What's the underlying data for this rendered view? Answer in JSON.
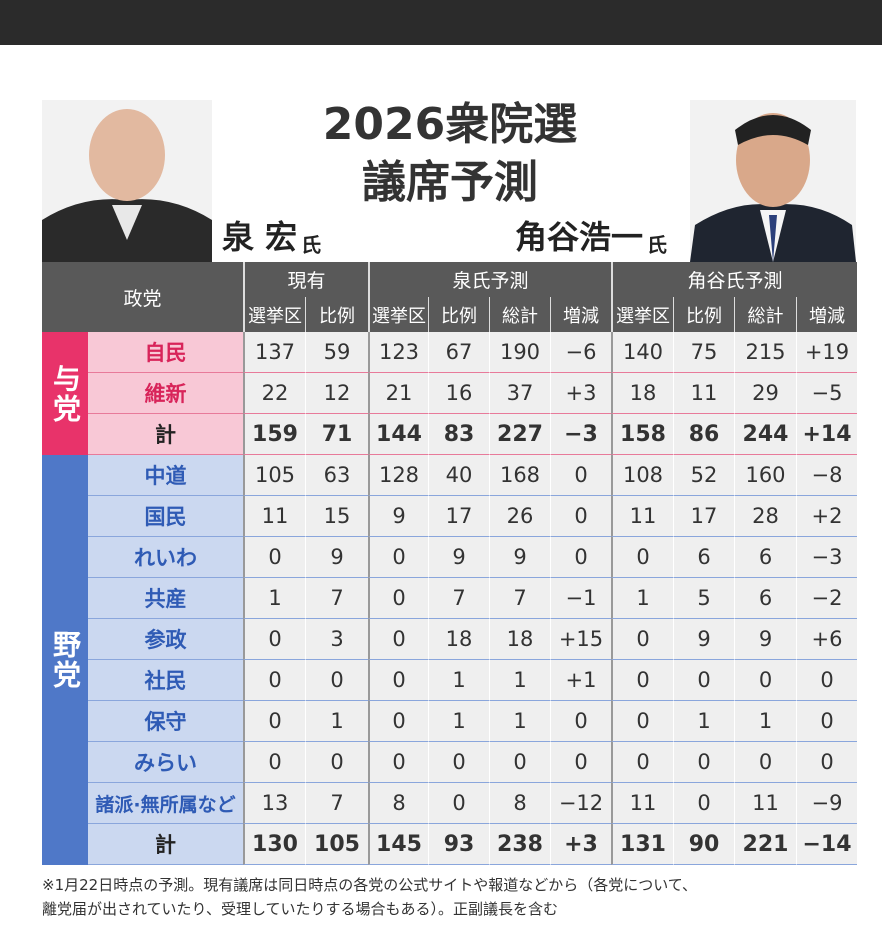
{
  "header": {
    "title": [
      "2026衆院選",
      "議席予測"
    ]
  },
  "people": [
    {
      "name": "泉 宏",
      "suffix": "氏"
    },
    {
      "name": "角谷浩一",
      "suffix": "氏"
    }
  ],
  "table": {
    "party_header": "政党",
    "column_groups": [
      {
        "label": "現有",
        "columns": [
          "選挙区",
          "比例"
        ]
      },
      {
        "label": "泉氏予測",
        "columns": [
          "選挙区",
          "比例",
          "総計",
          "増減"
        ]
      },
      {
        "label": "角谷氏予測",
        "columns": [
          "選挙区",
          "比例",
          "総計",
          "増減"
        ]
      }
    ],
    "blocs": [
      {
        "label": "与党",
        "rows": [
          [
            "自民",
            "137",
            "59",
            "123",
            "67",
            "190",
            "−6",
            "140",
            "75",
            "215",
            "+19"
          ],
          [
            "維新",
            "22",
            "12",
            "21",
            "16",
            "37",
            "+3",
            "18",
            "11",
            "29",
            "−5"
          ],
          [
            "計",
            "159",
            "71",
            "144",
            "83",
            "227",
            "−3",
            "158",
            "86",
            "244",
            "+14"
          ]
        ]
      },
      {
        "label": "野党",
        "rows": [
          [
            "中道",
            "105",
            "63",
            "128",
            "40",
            "168",
            "0",
            "108",
            "52",
            "160",
            "−8"
          ],
          [
            "国民",
            "11",
            "15",
            "9",
            "17",
            "26",
            "0",
            "11",
            "17",
            "28",
            "+2"
          ],
          [
            "れいわ",
            "0",
            "9",
            "0",
            "9",
            "9",
            "0",
            "0",
            "6",
            "6",
            "−3"
          ],
          [
            "共産",
            "1",
            "7",
            "0",
            "7",
            "7",
            "−1",
            "1",
            "5",
            "6",
            "−2"
          ],
          [
            "参政",
            "0",
            "3",
            "0",
            "18",
            "18",
            "+15",
            "0",
            "9",
            "9",
            "+6"
          ],
          [
            "社民",
            "0",
            "0",
            "0",
            "1",
            "1",
            "+1",
            "0",
            "0",
            "0",
            "0"
          ],
          [
            "保守",
            "0",
            "1",
            "0",
            "1",
            "1",
            "0",
            "0",
            "1",
            "1",
            "0"
          ],
          [
            "みらい",
            "0",
            "0",
            "0",
            "0",
            "0",
            "0",
            "0",
            "0",
            "0",
            "0"
          ],
          [
            "諸派·無所属など",
            "13",
            "7",
            "8",
            "0",
            "8",
            "−12",
            "11",
            "0",
            "11",
            "−9"
          ],
          [
            "計",
            "130",
            "105",
            "145",
            "93",
            "238",
            "+3",
            "131",
            "90",
            "221",
            "−14"
          ]
        ]
      }
    ]
  },
  "footnote": [
    "※1月22日時点の予測。現有議席は同日時点の各党の公式サイトや報道などから（各党について、",
    "離党届が出されていたり、受理していたりする場合もある）。正副議長を含む"
  ]
}
